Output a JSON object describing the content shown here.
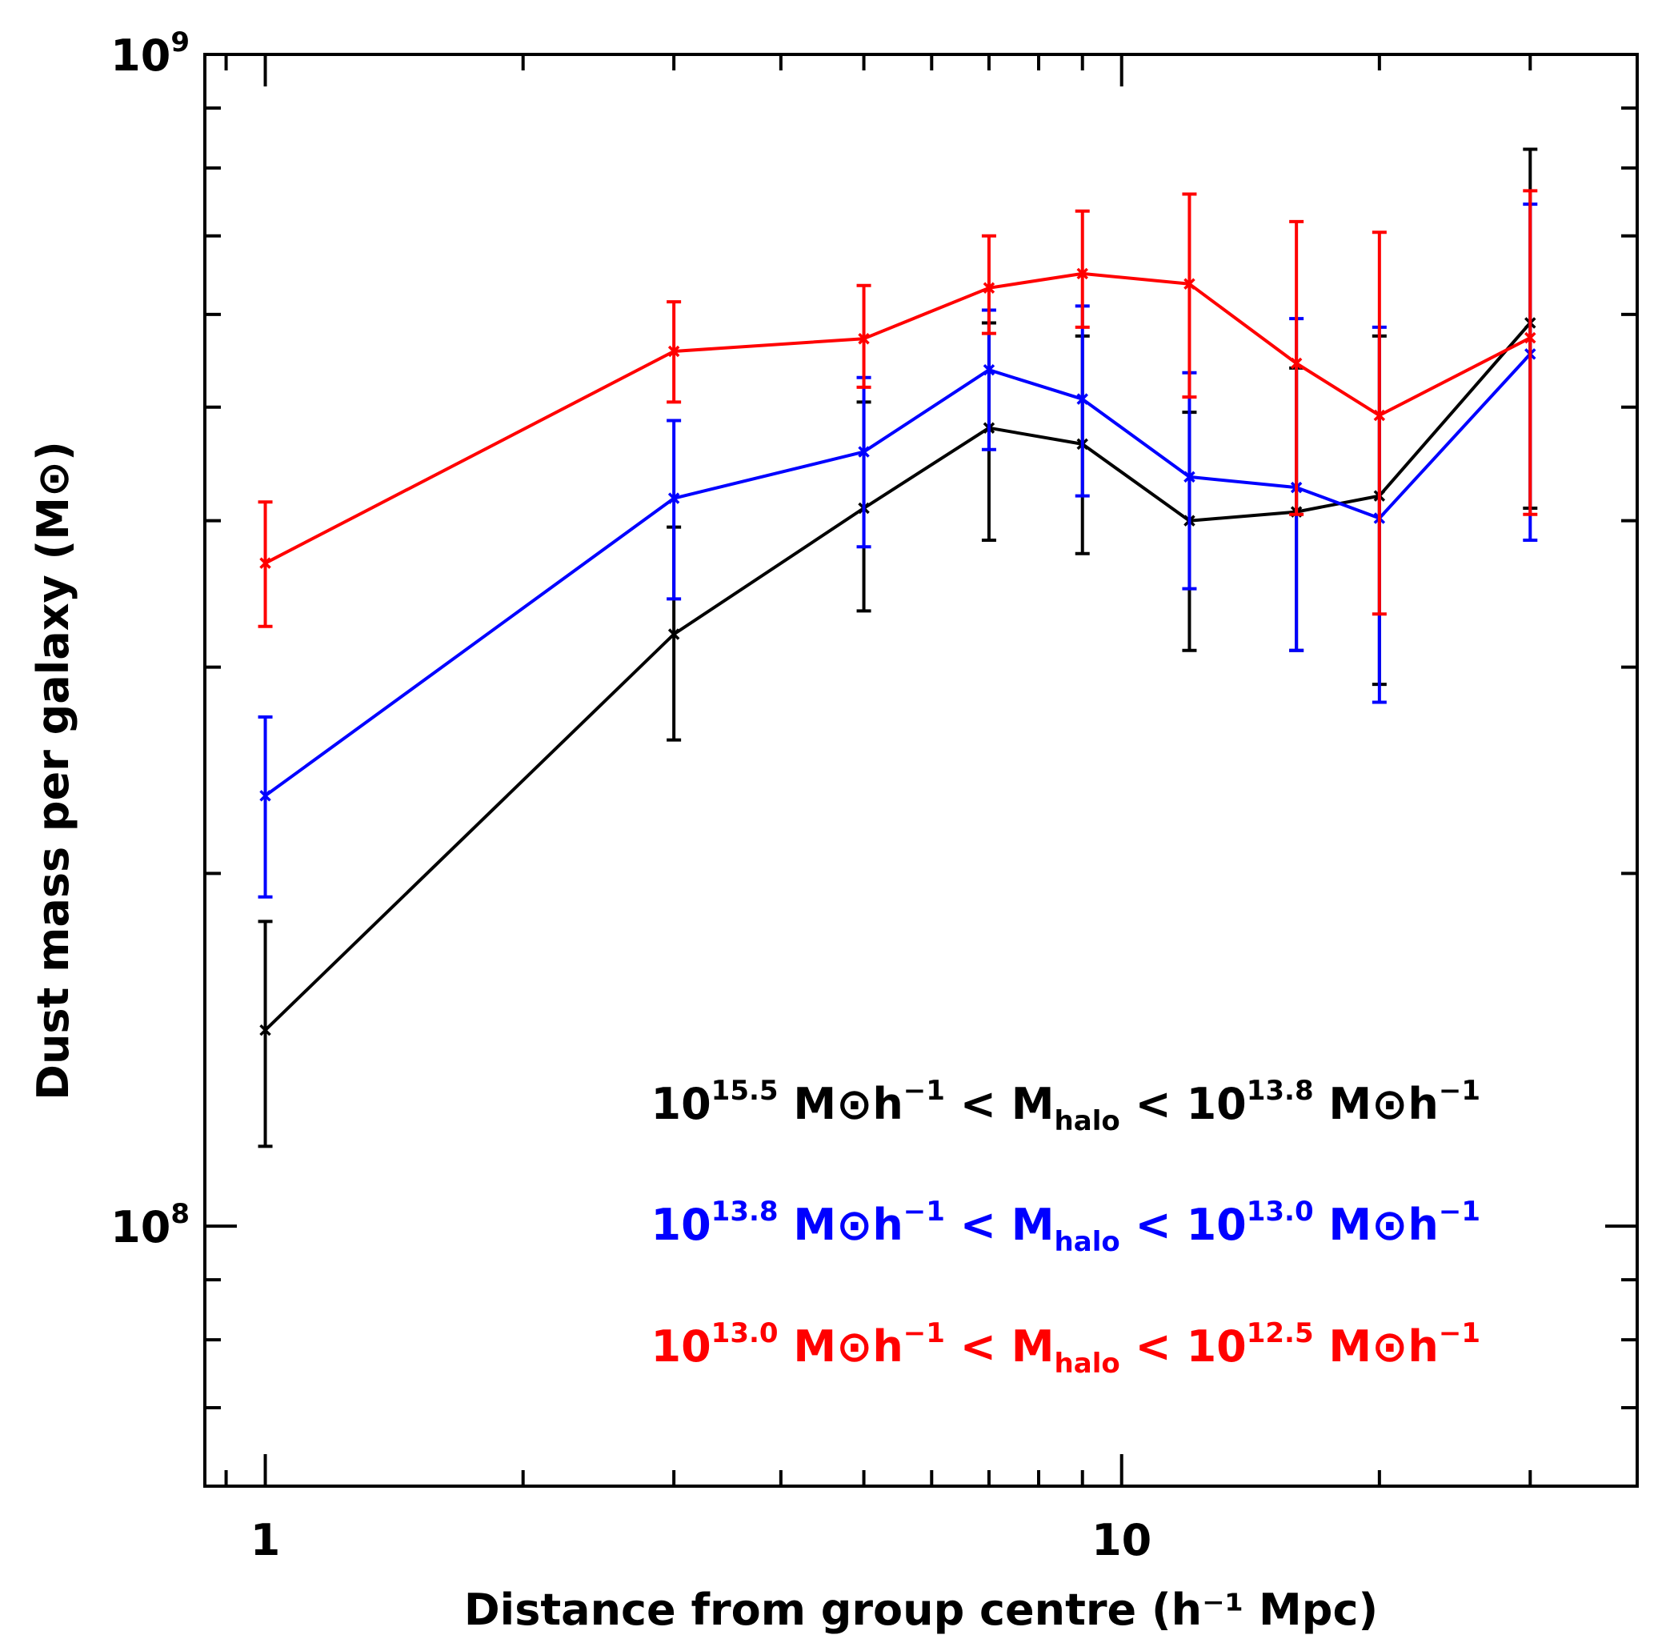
{
  "chart_data": {
    "type": "line",
    "title": "",
    "xlabel": "Distance from group centre (h⁻¹ Mpc)",
    "ylabel": "Dust mass per galaxy (M⊙)",
    "xscale": "log",
    "yscale": "log",
    "xlim": [
      0.85,
      40
    ],
    "ylim": [
      60000000.0,
      1000000000.0
    ],
    "x_tick_labels": [
      {
        "value": 1,
        "label": "1"
      },
      {
        "value": 10,
        "label": "10"
      }
    ],
    "y_tick_labels": [
      {
        "value": 100000000.0,
        "base": "10",
        "exp": "8"
      },
      {
        "value": 1000000000.0,
        "base": "10",
        "exp": "9"
      }
    ],
    "x": [
      1,
      3,
      5,
      7,
      9,
      12,
      16,
      20,
      30
    ],
    "series": [
      {
        "name": "10^15.5 M⊙h^-1 < M_halo < 10^13.8 M⊙h^-1",
        "color": "#000000",
        "values": [
          147000000.0,
          320000000.0,
          410000000.0,
          480000000.0,
          465000000.0,
          400000000.0,
          407000000.0,
          420000000.0,
          590000000.0
        ],
        "err_low": [
          117000000.0,
          260000000.0,
          335000000.0,
          385000000.0,
          375000000.0,
          310000000.0,
          310000000.0,
          290000000.0,
          410000000.0
        ],
        "err_high": [
          182000000.0,
          395000000.0,
          505000000.0,
          590000000.0,
          575000000.0,
          495000000.0,
          540000000.0,
          575000000.0,
          830000000.0
        ]
      },
      {
        "name": "10^13.8 M⊙h^-1 < M_halo < 10^13.0 M⊙h^-1",
        "color": "#0000ff",
        "values": [
          233000000.0,
          418000000.0,
          458000000.0,
          538000000.0,
          508000000.0,
          436000000.0,
          427000000.0,
          402000000.0,
          555000000.0
        ],
        "err_low": [
          191000000.0,
          343000000.0,
          380000000.0,
          460000000.0,
          420000000.0,
          350000000.0,
          310000000.0,
          280000000.0,
          385000000.0
        ],
        "err_high": [
          272000000.0,
          487000000.0,
          530000000.0,
          605000000.0,
          610000000.0,
          535000000.0,
          595000000.0,
          585000000.0,
          745000000.0
        ]
      },
      {
        "name": "10^13.0 M⊙h^-1 < M_halo < 10^12.5 M⊙h^-1",
        "color": "#ff0000",
        "values": [
          368000000.0,
          558000000.0,
          572000000.0,
          632000000.0,
          650000000.0,
          637000000.0,
          545000000.0,
          492000000.0,
          573000000.0
        ],
        "err_low": [
          325000000.0,
          505000000.0,
          520000000.0,
          578000000.0,
          585000000.0,
          510000000.0,
          405000000.0,
          333000000.0,
          405000000.0
        ],
        "err_high": [
          415000000.0,
          615000000.0,
          635000000.0,
          700000000.0,
          735000000.0,
          760000000.0,
          720000000.0,
          705000000.0,
          765000000.0
        ]
      }
    ],
    "legend": {
      "placement": "lower-right",
      "entries": [
        {
          "color": "#000000",
          "low_base": "10",
          "low_exp": "15.5",
          "unit": "M⊙h",
          "unit_exp": "−1",
          "lt": "<",
          "mass": "M",
          "mass_sub": "halo",
          "high_base": "10",
          "high_exp": "13.8"
        },
        {
          "color": "#0000ff",
          "low_base": "10",
          "low_exp": "13.8",
          "unit": "M⊙h",
          "unit_exp": "−1",
          "lt": "<",
          "mass": "M",
          "mass_sub": "halo",
          "high_base": "10",
          "high_exp": "13.0"
        },
        {
          "color": "#ff0000",
          "low_base": "10",
          "low_exp": "13.0",
          "unit": "M⊙h",
          "unit_exp": "−1",
          "lt": "<",
          "mass": "M",
          "mass_sub": "halo",
          "high_base": "10",
          "high_exp": "12.5"
        }
      ]
    }
  }
}
